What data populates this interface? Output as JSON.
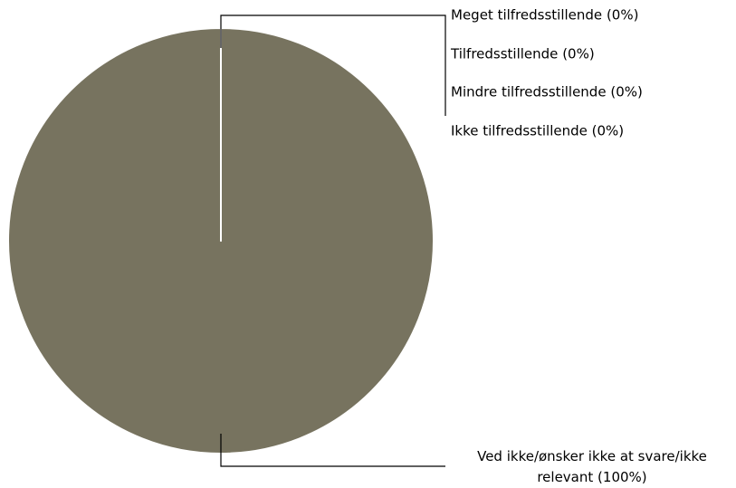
{
  "chart_data": {
    "type": "pie",
    "categories": [
      "Meget tilfredsstillende",
      "Tilfredsstillende",
      "Mindre tilfredsstillende",
      "Ikke tilfredsstillende",
      "Ved ikke/ønsker ikke at svare/ikke relevant"
    ],
    "values": [
      0,
      0,
      0,
      0,
      100
    ],
    "value_labels": [
      "(0%)",
      "(0%)",
      "(0%)",
      "(0%)",
      "(100%)"
    ],
    "colors": [
      "#77735f",
      "#77735f",
      "#77735f",
      "#77735f",
      "#77735f"
    ]
  }
}
